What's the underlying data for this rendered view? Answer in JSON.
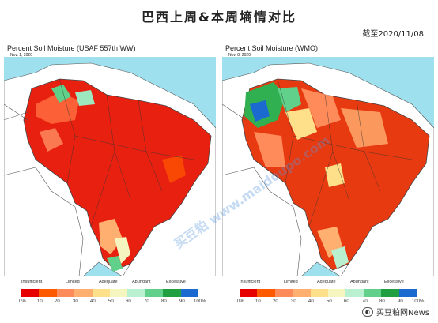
{
  "header": {
    "title": "巴西上周&本周墒情对比",
    "date_note": "截至2020/11/08"
  },
  "panels": [
    {
      "title": "Percent Soil Moisture (USAF 557th WW)",
      "date": "Nov. 1, 2020"
    },
    {
      "title": "Percent Soil Moisture (WMO)",
      "date": "Nov. 8, 2020"
    }
  ],
  "legend": {
    "categories": [
      "Insufficient",
      "Limited",
      "Adequate",
      "Abundant",
      "Excessive"
    ],
    "ticks": [
      "0%",
      "10",
      "20",
      "30",
      "40",
      "50",
      "60",
      "70",
      "80",
      "90",
      "100%"
    ],
    "colors": [
      "#e60000",
      "#ff5a00",
      "#ff8a5a",
      "#ffb070",
      "#ffe08a",
      "#f5f5c0",
      "#b8f0d0",
      "#60d08a",
      "#20a040",
      "#1a6ad0"
    ]
  },
  "watermark": {
    "text": "买豆粕 www.maidoupo.com"
  },
  "footer": {
    "account": "买豆粕网News"
  }
}
